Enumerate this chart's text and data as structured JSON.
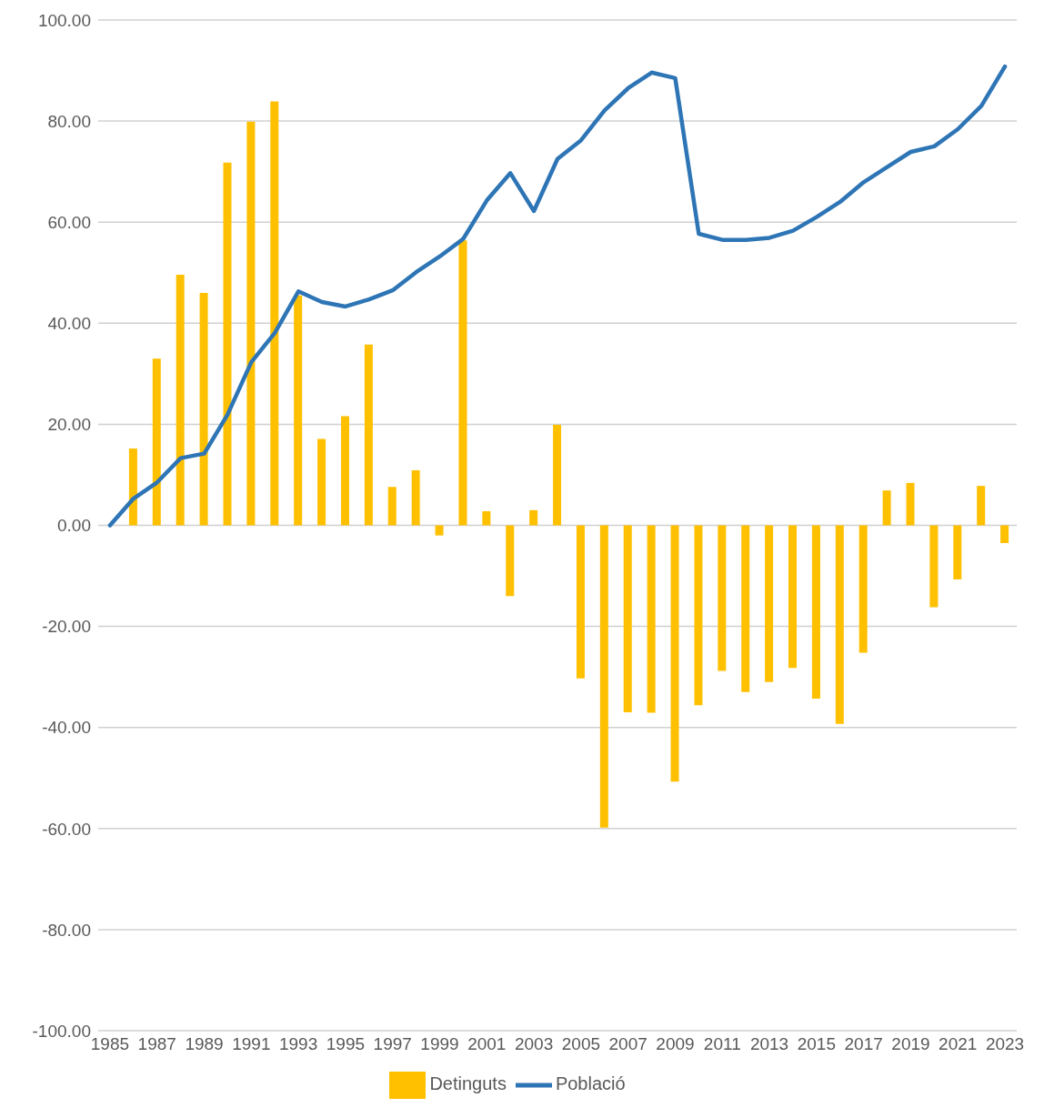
{
  "chart_data": {
    "type": "bar",
    "categories": [
      "1985",
      null,
      "1987",
      null,
      "1989",
      null,
      "1991",
      null,
      "1993",
      null,
      "1995",
      null,
      "1997",
      null,
      "1999",
      null,
      "2001",
      null,
      "2003",
      null,
      "2005",
      null,
      "2007",
      null,
      "2009",
      null,
      "2011",
      null,
      "2013",
      null,
      "2015",
      null,
      "2017",
      null,
      "2019",
      null,
      "2021",
      null,
      "2023"
    ],
    "series": [
      {
        "name": "Detinguts",
        "color": "#ffc000",
        "values": [
          0,
          15.2,
          33.0,
          49.6,
          46.0,
          71.8,
          79.9,
          83.9,
          45.5,
          17.1,
          21.6,
          35.8,
          7.6,
          10.9,
          -2.0,
          56.4,
          2.8,
          -14.0,
          3.0,
          19.9,
          -30.3,
          -59.8,
          -37.0,
          -37.1,
          -50.7,
          -35.6,
          -28.8,
          -33.0,
          -31.0,
          -28.2,
          -34.3,
          -39.3,
          -25.2,
          6.9,
          8.4,
          -16.2,
          -10.7,
          7.8,
          -3.5
        ]
      },
      {
        "name": "Població",
        "type": "line",
        "color": "#2e75b6",
        "values": [
          0,
          5.3,
          8.5,
          13.3,
          14.2,
          22.0,
          32.3,
          38.1,
          46.3,
          44.2,
          43.3,
          44.7,
          46.5,
          50.1,
          53.2,
          56.7,
          64.3,
          69.7,
          62.2,
          72.5,
          76.2,
          82.1,
          86.5,
          89.6,
          88.5,
          57.7,
          56.5,
          56.5,
          56.9,
          58.3,
          61.0,
          64.0,
          67.9,
          70.9,
          73.9,
          75.0,
          78.4,
          83.0,
          90.8
        ]
      }
    ],
    "ylim": [
      -100,
      100
    ],
    "yticks": [
      {
        "value": -100,
        "label": "-100.00"
      },
      {
        "value": -80,
        "label": "-80.00"
      },
      {
        "value": -60,
        "label": "-60.00"
      },
      {
        "value": -40,
        "label": "-40.00"
      },
      {
        "value": -20,
        "label": "-20.00"
      },
      {
        "value": 0,
        "label": "0.00"
      },
      {
        "value": 20,
        "label": "20.00"
      },
      {
        "value": 40,
        "label": "40.00"
      },
      {
        "value": 60,
        "label": "60.00"
      },
      {
        "value": 80,
        "label": "80.00"
      },
      {
        "value": 100,
        "label": "100.00"
      }
    ],
    "grid": "y",
    "legend": "bottom"
  }
}
